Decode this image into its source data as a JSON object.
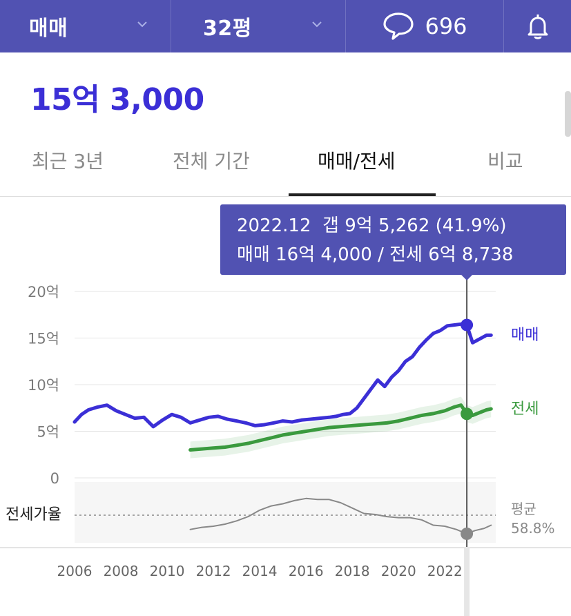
{
  "header": {
    "deal_type": "매매",
    "size": "32평",
    "comment_count": "696",
    "icons": [
      "chevron-down-icon",
      "comment-bubble-icon",
      "bell-icon"
    ]
  },
  "price": "15억 3,000",
  "tabs": [
    {
      "label": "최근 3년",
      "active": false
    },
    {
      "label": "전체 기간",
      "active": false
    },
    {
      "label": "매매/전세",
      "active": true
    },
    {
      "label": "비교",
      "active": false
    }
  ],
  "tooltip": {
    "line1": "2022.12  갭 9억 5,262 (41.9%)",
    "line2": "매매 16억 4,000 / 전세 6억 8,738"
  },
  "colors": {
    "header_bg": "#5152b2",
    "price_text": "#3b2fd6",
    "sale_line": "#3b2fd6",
    "jeonse_line": "#3a9a3e",
    "ratio_line": "#888888"
  },
  "chart_data": {
    "type": "line",
    "xlabel": "",
    "ylabel": "",
    "ylim": [
      0,
      20
    ],
    "y_ticks": [
      {
        "value": 0,
        "label": "0"
      },
      {
        "value": 5,
        "label": "5억"
      },
      {
        "value": 10,
        "label": "10억"
      },
      {
        "value": 15,
        "label": "15억"
      },
      {
        "value": 20,
        "label": "20억"
      }
    ],
    "x_ticks": [
      "2006",
      "2008",
      "2010",
      "2012",
      "2014",
      "2016",
      "2018",
      "2020",
      "2022"
    ],
    "xlim": [
      2006,
      2024.2
    ],
    "series": [
      {
        "name": "매매",
        "color": "#3b2fd6",
        "x": [
          2006.0,
          2006.3,
          2006.6,
          2007.0,
          2007.4,
          2007.8,
          2008.2,
          2008.6,
          2009.0,
          2009.4,
          2009.8,
          2010.2,
          2010.6,
          2011.0,
          2011.4,
          2011.8,
          2012.2,
          2012.6,
          2013.0,
          2013.4,
          2013.8,
          2014.2,
          2014.6,
          2015.0,
          2015.4,
          2015.8,
          2016.2,
          2016.6,
          2017.0,
          2017.3,
          2017.6,
          2017.9,
          2018.2,
          2018.5,
          2018.8,
          2019.1,
          2019.4,
          2019.7,
          2020.0,
          2020.3,
          2020.6,
          2020.9,
          2021.2,
          2021.5,
          2021.8,
          2022.1,
          2022.4,
          2022.7,
          2022.95,
          2023.2,
          2023.5,
          2023.8,
          2024.0
        ],
        "values": [
          6.0,
          6.8,
          7.3,
          7.6,
          7.8,
          7.2,
          6.8,
          6.4,
          6.5,
          5.5,
          6.2,
          6.8,
          6.5,
          5.9,
          6.2,
          6.5,
          6.6,
          6.3,
          6.1,
          5.9,
          5.6,
          5.7,
          5.9,
          6.1,
          6.0,
          6.2,
          6.3,
          6.4,
          6.5,
          6.6,
          6.8,
          6.9,
          7.5,
          8.5,
          9.5,
          10.5,
          9.8,
          10.8,
          11.5,
          12.5,
          13.0,
          14.0,
          14.8,
          15.5,
          15.8,
          16.3,
          16.4,
          16.5,
          16.4,
          14.5,
          14.9,
          15.3,
          15.3
        ]
      },
      {
        "name": "전세",
        "color": "#3a9a3e",
        "x": [
          2011.0,
          2011.5,
          2012.0,
          2012.5,
          2013.0,
          2013.5,
          2014.0,
          2014.5,
          2015.0,
          2015.5,
          2016.0,
          2016.5,
          2017.0,
          2017.5,
          2018.0,
          2018.5,
          2019.0,
          2019.5,
          2020.0,
          2020.5,
          2021.0,
          2021.5,
          2022.0,
          2022.4,
          2022.7,
          2022.95,
          2023.2,
          2023.5,
          2023.8,
          2024.0
        ],
        "values": [
          3.0,
          3.1,
          3.2,
          3.3,
          3.5,
          3.7,
          4.0,
          4.3,
          4.6,
          4.8,
          5.0,
          5.2,
          5.4,
          5.5,
          5.6,
          5.7,
          5.8,
          5.9,
          6.1,
          6.4,
          6.7,
          6.9,
          7.2,
          7.6,
          7.8,
          6.9,
          6.7,
          7.0,
          7.3,
          7.4
        ]
      },
      {
        "name": "전세가율",
        "color": "#888888",
        "x": [
          2011.0,
          2011.5,
          2012.0,
          2012.5,
          2013.0,
          2013.5,
          2014.0,
          2014.5,
          2015.0,
          2015.5,
          2016.0,
          2016.5,
          2017.0,
          2017.5,
          2018.0,
          2018.5,
          2019.0,
          2019.5,
          2020.0,
          2020.5,
          2021.0,
          2021.5,
          2022.0,
          2022.5,
          2022.95,
          2023.3,
          2023.7,
          2024.0
        ],
        "values": [
          46,
          48,
          49,
          51,
          54,
          58,
          64,
          68,
          70,
          73,
          75,
          74,
          74,
          71,
          66,
          61,
          60,
          58,
          57,
          57,
          55,
          50,
          49,
          46,
          42,
          45,
          47,
          50
        ]
      }
    ],
    "average_label": "평균",
    "average_value": "58.8%",
    "ratio_label": "전세가율",
    "highlight": {
      "x": 2022.95,
      "sale": 16.4,
      "jeonse": 6.87,
      "ratio": 42
    }
  }
}
